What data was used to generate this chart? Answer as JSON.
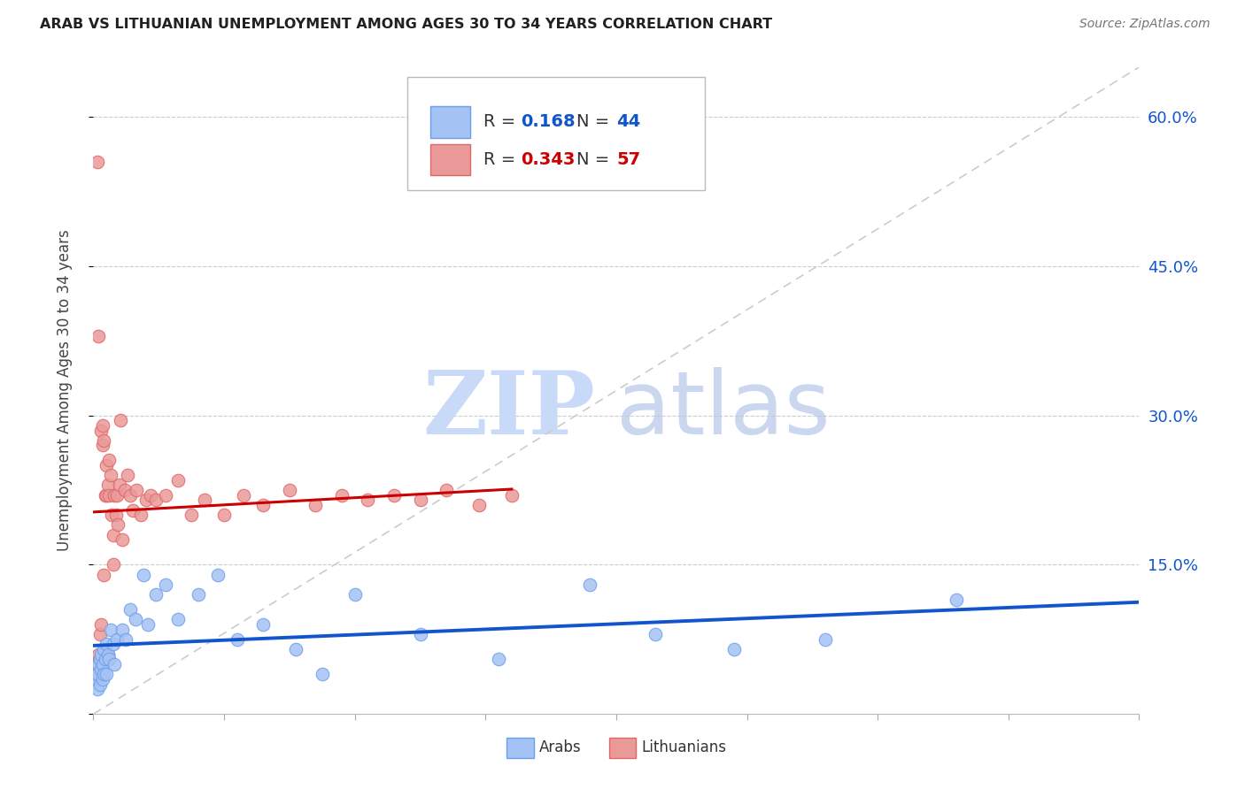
{
  "title": "ARAB VS LITHUANIAN UNEMPLOYMENT AMONG AGES 30 TO 34 YEARS CORRELATION CHART",
  "source": "Source: ZipAtlas.com",
  "ylabel": "Unemployment Among Ages 30 to 34 years",
  "xlim": [
    0.0,
    0.8
  ],
  "ylim": [
    0.0,
    0.65
  ],
  "yticks_right": [
    0.0,
    0.15,
    0.3,
    0.45,
    0.6
  ],
  "ytick_labels_right": [
    "",
    "15.0%",
    "30.0%",
    "45.0%",
    "60.0%"
  ],
  "xticks": [
    0.0,
    0.1,
    0.2,
    0.3,
    0.4,
    0.5,
    0.6,
    0.7,
    0.8
  ],
  "legend_arab_R": "0.168",
  "legend_arab_N": "44",
  "legend_lith_R": "0.343",
  "legend_lith_N": "57",
  "arab_face_color": "#a4c2f4",
  "arab_edge_color": "#6d9eeb",
  "lith_face_color": "#ea9999",
  "lith_edge_color": "#e06666",
  "arab_line_color": "#1155cc",
  "lith_line_color": "#cc0000",
  "ref_line_color": "#cccccc",
  "watermark_zip_color": "#c9daf8",
  "watermark_atlas_color": "#b6d7a8",
  "background_color": "#ffffff",
  "grid_color": "#cccccc",
  "title_color": "#212121",
  "source_color": "#757575",
  "axis_label_color": "#1155cc",
  "arab_x": [
    0.002,
    0.003,
    0.003,
    0.004,
    0.005,
    0.005,
    0.006,
    0.006,
    0.007,
    0.007,
    0.008,
    0.008,
    0.009,
    0.01,
    0.01,
    0.011,
    0.012,
    0.013,
    0.015,
    0.016,
    0.018,
    0.022,
    0.025,
    0.028,
    0.032,
    0.038,
    0.042,
    0.048,
    0.055,
    0.065,
    0.08,
    0.095,
    0.11,
    0.13,
    0.155,
    0.175,
    0.2,
    0.25,
    0.31,
    0.38,
    0.43,
    0.49,
    0.56,
    0.66
  ],
  "arab_y": [
    0.035,
    0.025,
    0.04,
    0.05,
    0.03,
    0.055,
    0.045,
    0.06,
    0.05,
    0.035,
    0.065,
    0.04,
    0.055,
    0.07,
    0.04,
    0.06,
    0.055,
    0.085,
    0.07,
    0.05,
    0.075,
    0.085,
    0.075,
    0.105,
    0.095,
    0.14,
    0.09,
    0.12,
    0.13,
    0.095,
    0.12,
    0.14,
    0.075,
    0.09,
    0.065,
    0.04,
    0.12,
    0.08,
    0.055,
    0.13,
    0.08,
    0.065,
    0.075,
    0.115
  ],
  "lith_x": [
    0.002,
    0.003,
    0.003,
    0.004,
    0.004,
    0.005,
    0.005,
    0.006,
    0.006,
    0.007,
    0.007,
    0.008,
    0.008,
    0.009,
    0.009,
    0.01,
    0.01,
    0.011,
    0.011,
    0.012,
    0.012,
    0.013,
    0.014,
    0.015,
    0.015,
    0.016,
    0.017,
    0.018,
    0.019,
    0.02,
    0.021,
    0.022,
    0.024,
    0.026,
    0.028,
    0.03,
    0.033,
    0.036,
    0.04,
    0.044,
    0.048,
    0.055,
    0.065,
    0.075,
    0.085,
    0.1,
    0.115,
    0.13,
    0.15,
    0.17,
    0.19,
    0.21,
    0.23,
    0.25,
    0.27,
    0.295,
    0.32
  ],
  "lith_y": [
    0.04,
    0.555,
    0.05,
    0.38,
    0.06,
    0.08,
    0.055,
    0.09,
    0.285,
    0.27,
    0.29,
    0.275,
    0.14,
    0.22,
    0.06,
    0.25,
    0.22,
    0.23,
    0.06,
    0.255,
    0.22,
    0.24,
    0.2,
    0.15,
    0.18,
    0.22,
    0.2,
    0.22,
    0.19,
    0.23,
    0.295,
    0.175,
    0.225,
    0.24,
    0.22,
    0.205,
    0.225,
    0.2,
    0.215,
    0.22,
    0.215,
    0.22,
    0.235,
    0.2,
    0.215,
    0.2,
    0.22,
    0.21,
    0.225,
    0.21,
    0.22,
    0.215,
    0.22,
    0.215,
    0.225,
    0.21,
    0.22
  ]
}
